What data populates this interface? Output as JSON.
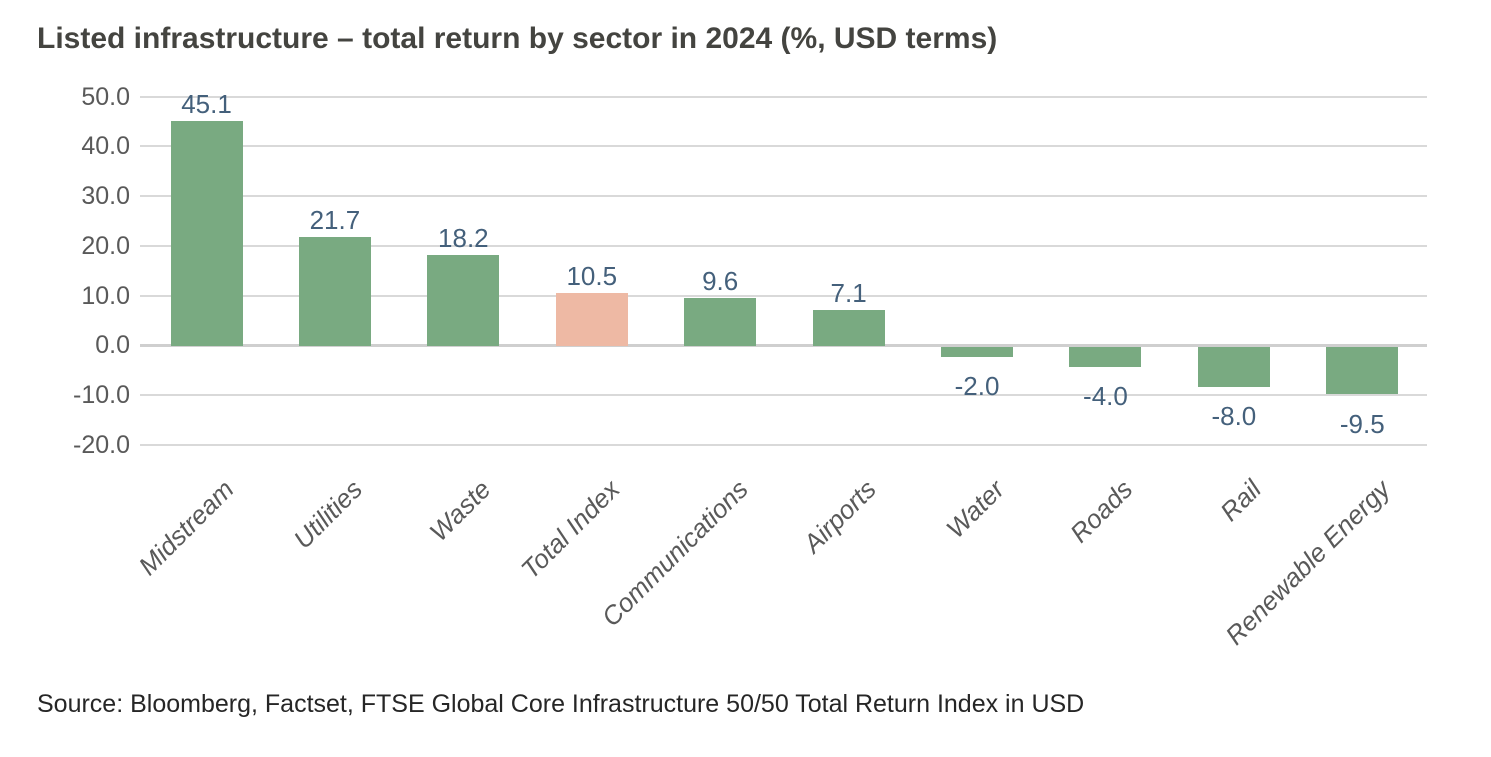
{
  "title": "Listed infrastructure – total return by sector in 2024 (%, USD terms)",
  "source": "Source: Bloomberg, Factset, FTSE Global Core Infrastructure 50/50 Total Return Index in USD",
  "chart_data": {
    "type": "bar",
    "title": "Listed infrastructure – total return by sector in 2024 (%, USD terms)",
    "categories": [
      "Midstream",
      "Utilities",
      "Waste",
      "Total Index",
      "Communications",
      "Airports",
      "Water",
      "Roads",
      "Rail",
      "Renewable Energy"
    ],
    "values": [
      45.1,
      21.7,
      18.2,
      10.5,
      9.6,
      7.1,
      -2.0,
      -4.0,
      -8.0,
      -9.5
    ],
    "value_labels": [
      "45.1",
      "21.7",
      "18.2",
      "10.5",
      "9.6",
      "7.1",
      "-2.0",
      "-4.0",
      "-8.0",
      "-9.5"
    ],
    "highlight_index": 3,
    "highlight_category": "Total Index",
    "xlabel": "",
    "ylabel": "",
    "ylim": [
      -20,
      50
    ],
    "y_ticks": [
      "50.0",
      "40.0",
      "30.0",
      "20.0",
      "10.0",
      "0.0",
      "-10.0",
      "-20.0"
    ],
    "y_tick_values": [
      50,
      40,
      30,
      20,
      10,
      0,
      -10,
      -20
    ],
    "grid": "horizontal",
    "legend": "none",
    "colors": {
      "bar_default": "#79aa81",
      "bar_highlight": "#eeb9a4",
      "value_label": "#44607b",
      "axis_label": "#595959",
      "category_label": "#595959",
      "gridline": "#d9d9d9",
      "zero_line": "#cfcfcf",
      "title": "#444440",
      "source": "#262626",
      "background": "#ffffff"
    }
  }
}
